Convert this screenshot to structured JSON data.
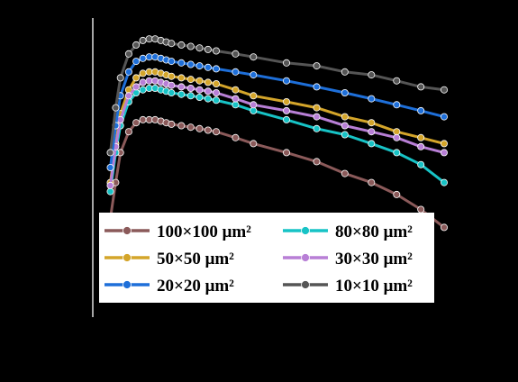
{
  "chart_data": {
    "type": "line",
    "title": "",
    "xlabel": "",
    "ylabel": "",
    "x": [
      0.1,
      0.15,
      0.2,
      0.3,
      0.4,
      0.5,
      0.6,
      0.7,
      0.8,
      0.9,
      1.0,
      1.2,
      1.4,
      1.6,
      1.8,
      2.0,
      2.5,
      3.0,
      4.0,
      5.0,
      6.0,
      7.0,
      8.0,
      9.0,
      10.0
    ],
    "xlim": [
      0,
      10
    ],
    "ylim": [
      0,
      1
    ],
    "series": [
      {
        "name": "100×100 μm²",
        "color": "#8B5A5A",
        "values": [
          0.33,
          0.45,
          0.55,
          0.62,
          0.65,
          0.66,
          0.66,
          0.66,
          0.655,
          0.65,
          0.645,
          0.64,
          0.635,
          0.63,
          0.625,
          0.62,
          0.6,
          0.58,
          0.55,
          0.52,
          0.48,
          0.45,
          0.41,
          0.36,
          0.3
        ]
      },
      {
        "name": "80×80 μm²",
        "color": "#17C3C6",
        "values": [
          0.42,
          0.55,
          0.64,
          0.72,
          0.75,
          0.76,
          0.765,
          0.765,
          0.76,
          0.755,
          0.75,
          0.745,
          0.74,
          0.735,
          0.73,
          0.725,
          0.71,
          0.69,
          0.66,
          0.63,
          0.61,
          0.58,
          0.55,
          0.51,
          0.45
        ]
      },
      {
        "name": "50×50 μm²",
        "color": "#D4A52A",
        "values": [
          0.45,
          0.58,
          0.68,
          0.76,
          0.8,
          0.815,
          0.82,
          0.82,
          0.815,
          0.81,
          0.805,
          0.8,
          0.795,
          0.79,
          0.785,
          0.78,
          0.76,
          0.74,
          0.72,
          0.7,
          0.67,
          0.65,
          0.62,
          0.6,
          0.58
        ]
      },
      {
        "name": "30×30 μm²",
        "color": "#B87FD6",
        "values": [
          0.44,
          0.57,
          0.66,
          0.74,
          0.77,
          0.785,
          0.79,
          0.79,
          0.785,
          0.78,
          0.775,
          0.77,
          0.765,
          0.76,
          0.755,
          0.75,
          0.73,
          0.71,
          0.69,
          0.67,
          0.64,
          0.62,
          0.6,
          0.57,
          0.55
        ]
      },
      {
        "name": "20×20 μm²",
        "color": "#1E6FD9",
        "values": [
          0.5,
          0.64,
          0.74,
          0.82,
          0.855,
          0.865,
          0.87,
          0.87,
          0.865,
          0.86,
          0.855,
          0.85,
          0.845,
          0.84,
          0.835,
          0.83,
          0.82,
          0.81,
          0.79,
          0.77,
          0.75,
          0.73,
          0.71,
          0.69,
          0.67
        ]
      },
      {
        "name": "10×10 μm²",
        "color": "#555555",
        "values": [
          0.55,
          0.7,
          0.8,
          0.88,
          0.91,
          0.925,
          0.93,
          0.93,
          0.925,
          0.92,
          0.915,
          0.91,
          0.905,
          0.9,
          0.895,
          0.89,
          0.88,
          0.87,
          0.85,
          0.84,
          0.82,
          0.81,
          0.79,
          0.77,
          0.76
        ]
      }
    ],
    "legend": {
      "position": "lower-center",
      "columns": 2,
      "order": [
        0,
        1,
        2,
        3,
        4,
        5
      ]
    },
    "grid": false
  }
}
